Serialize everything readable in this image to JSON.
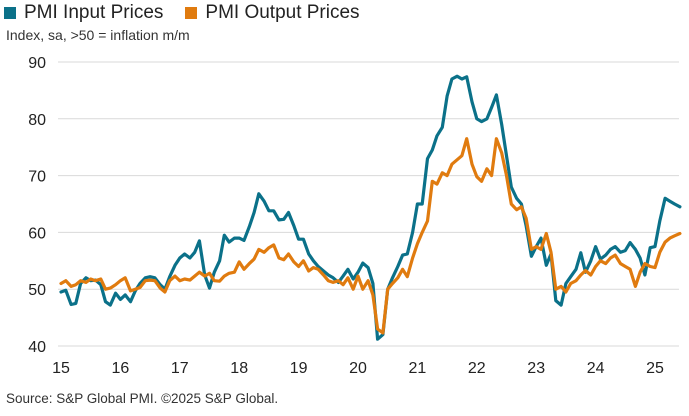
{
  "chart_data": {
    "type": "line",
    "subtitle": "Index, sa, >50 = inflation m/m",
    "source": "Source: S&P Global PMI. ©2025 S&P Global.",
    "ylim": [
      40,
      90
    ],
    "yticks": [
      "40",
      "50",
      "60",
      "70",
      "80",
      "90"
    ],
    "xlim": [
      2015.0,
      2025.42
    ],
    "xticks": [
      "15",
      "16",
      "17",
      "18",
      "19",
      "20",
      "21",
      "22",
      "23",
      "24",
      "25"
    ],
    "grid": true,
    "series": [
      {
        "name": "PMI Input Prices",
        "color": "#0b7189",
        "points": [
          [
            2015.0,
            49.5
          ],
          [
            2015.08,
            49.8
          ],
          [
            2015.17,
            47.3
          ],
          [
            2015.25,
            47.5
          ],
          [
            2015.33,
            51.0
          ],
          [
            2015.42,
            52.0
          ],
          [
            2015.5,
            51.5
          ],
          [
            2015.58,
            51.6
          ],
          [
            2015.67,
            50.8
          ],
          [
            2015.75,
            47.8
          ],
          [
            2015.83,
            47.2
          ],
          [
            2015.92,
            49.3
          ],
          [
            2016.0,
            48.2
          ],
          [
            2016.08,
            49.0
          ],
          [
            2016.17,
            47.8
          ],
          [
            2016.25,
            49.7
          ],
          [
            2016.33,
            51.0
          ],
          [
            2016.42,
            52.0
          ],
          [
            2016.5,
            52.2
          ],
          [
            2016.58,
            52.0
          ],
          [
            2016.67,
            50.8
          ],
          [
            2016.75,
            50.0
          ],
          [
            2016.83,
            52.2
          ],
          [
            2016.92,
            54.2
          ],
          [
            2017.0,
            55.5
          ],
          [
            2017.08,
            56.2
          ],
          [
            2017.17,
            55.5
          ],
          [
            2017.25,
            56.5
          ],
          [
            2017.33,
            58.5
          ],
          [
            2017.42,
            52.5
          ],
          [
            2017.5,
            50.2
          ],
          [
            2017.58,
            53.0
          ],
          [
            2017.67,
            55.0
          ],
          [
            2017.75,
            59.5
          ],
          [
            2017.83,
            58.3
          ],
          [
            2017.92,
            59.0
          ],
          [
            2018.0,
            59.0
          ],
          [
            2018.08,
            58.6
          ],
          [
            2018.17,
            61.0
          ],
          [
            2018.25,
            63.5
          ],
          [
            2018.33,
            66.8
          ],
          [
            2018.42,
            65.5
          ],
          [
            2018.5,
            63.8
          ],
          [
            2018.58,
            63.8
          ],
          [
            2018.67,
            62.2
          ],
          [
            2018.75,
            62.3
          ],
          [
            2018.83,
            63.5
          ],
          [
            2018.92,
            61.2
          ],
          [
            2019.0,
            58.8
          ],
          [
            2019.08,
            58.8
          ],
          [
            2019.17,
            56.2
          ],
          [
            2019.25,
            55.0
          ],
          [
            2019.33,
            54.0
          ],
          [
            2019.42,
            53.2
          ],
          [
            2019.5,
            52.5
          ],
          [
            2019.58,
            52.0
          ],
          [
            2019.67,
            51.2
          ],
          [
            2019.75,
            52.3
          ],
          [
            2019.83,
            53.5
          ],
          [
            2019.92,
            51.8
          ],
          [
            2020.0,
            53.0
          ],
          [
            2020.08,
            54.6
          ],
          [
            2020.17,
            53.8
          ],
          [
            2020.25,
            51.0
          ],
          [
            2020.33,
            41.2
          ],
          [
            2020.42,
            42.0
          ],
          [
            2020.5,
            50.0
          ],
          [
            2020.58,
            52.0
          ],
          [
            2020.67,
            54.0
          ],
          [
            2020.75,
            56.0
          ],
          [
            2020.83,
            56.2
          ],
          [
            2020.92,
            60.0
          ],
          [
            2021.0,
            65.0
          ],
          [
            2021.08,
            65.0
          ],
          [
            2021.17,
            73.0
          ],
          [
            2021.25,
            74.5
          ],
          [
            2021.33,
            77.0
          ],
          [
            2021.42,
            78.5
          ],
          [
            2021.5,
            84.0
          ],
          [
            2021.58,
            87.0
          ],
          [
            2021.67,
            87.5
          ],
          [
            2021.75,
            87.0
          ],
          [
            2021.83,
            87.4
          ],
          [
            2021.92,
            83.0
          ],
          [
            2022.0,
            80.0
          ],
          [
            2022.08,
            79.5
          ],
          [
            2022.17,
            80.0
          ],
          [
            2022.25,
            82.0
          ],
          [
            2022.33,
            84.2
          ],
          [
            2022.42,
            79.0
          ],
          [
            2022.5,
            73.5
          ],
          [
            2022.58,
            68.0
          ],
          [
            2022.67,
            66.0
          ],
          [
            2022.75,
            65.0
          ],
          [
            2022.83,
            61.2
          ],
          [
            2022.92,
            55.8
          ],
          [
            2023.0,
            57.5
          ],
          [
            2023.08,
            59.0
          ],
          [
            2023.17,
            54.2
          ],
          [
            2023.25,
            56.2
          ],
          [
            2023.33,
            48.0
          ],
          [
            2023.42,
            47.2
          ],
          [
            2023.5,
            51.0
          ],
          [
            2023.58,
            52.2
          ],
          [
            2023.67,
            53.5
          ],
          [
            2023.75,
            56.4
          ],
          [
            2023.83,
            53.0
          ],
          [
            2023.92,
            55.0
          ],
          [
            2024.0,
            57.5
          ],
          [
            2024.08,
            55.3
          ],
          [
            2024.17,
            56.0
          ],
          [
            2024.25,
            57.0
          ],
          [
            2024.33,
            57.5
          ],
          [
            2024.42,
            56.5
          ],
          [
            2024.5,
            56.8
          ],
          [
            2024.58,
            58.2
          ],
          [
            2024.67,
            57.0
          ],
          [
            2024.75,
            55.5
          ],
          [
            2024.83,
            52.5
          ],
          [
            2024.92,
            57.3
          ],
          [
            2025.0,
            57.5
          ],
          [
            2025.08,
            62.0
          ],
          [
            2025.17,
            66.0
          ],
          [
            2025.25,
            65.5
          ],
          [
            2025.33,
            65.0
          ],
          [
            2025.42,
            64.5
          ]
        ]
      },
      {
        "name": "PMI Output Prices",
        "color": "#e07b0f",
        "points": [
          [
            2015.0,
            51.0
          ],
          [
            2015.08,
            51.5
          ],
          [
            2015.17,
            50.5
          ],
          [
            2015.25,
            50.8
          ],
          [
            2015.33,
            51.5
          ],
          [
            2015.42,
            51.2
          ],
          [
            2015.5,
            51.8
          ],
          [
            2015.58,
            51.5
          ],
          [
            2015.67,
            51.8
          ],
          [
            2015.75,
            50.0
          ],
          [
            2015.83,
            50.2
          ],
          [
            2015.92,
            50.8
          ],
          [
            2016.0,
            51.5
          ],
          [
            2016.08,
            52.0
          ],
          [
            2016.17,
            49.7
          ],
          [
            2016.25,
            50.0
          ],
          [
            2016.33,
            50.3
          ],
          [
            2016.42,
            51.5
          ],
          [
            2016.5,
            51.6
          ],
          [
            2016.58,
            51.5
          ],
          [
            2016.67,
            50.2
          ],
          [
            2016.75,
            49.5
          ],
          [
            2016.83,
            51.5
          ],
          [
            2016.92,
            52.3
          ],
          [
            2017.0,
            51.5
          ],
          [
            2017.08,
            51.8
          ],
          [
            2017.17,
            51.6
          ],
          [
            2017.25,
            52.3
          ],
          [
            2017.33,
            53.0
          ],
          [
            2017.42,
            52.3
          ],
          [
            2017.5,
            52.8
          ],
          [
            2017.58,
            51.5
          ],
          [
            2017.67,
            51.4
          ],
          [
            2017.75,
            52.3
          ],
          [
            2017.83,
            52.8
          ],
          [
            2017.92,
            53.0
          ],
          [
            2018.0,
            54.8
          ],
          [
            2018.08,
            53.5
          ],
          [
            2018.17,
            54.5
          ],
          [
            2018.25,
            55.3
          ],
          [
            2018.33,
            57.0
          ],
          [
            2018.42,
            56.5
          ],
          [
            2018.5,
            57.3
          ],
          [
            2018.58,
            57.8
          ],
          [
            2018.67,
            55.5
          ],
          [
            2018.75,
            55.2
          ],
          [
            2018.83,
            56.2
          ],
          [
            2018.92,
            54.8
          ],
          [
            2019.0,
            54.0
          ],
          [
            2019.08,
            55.0
          ],
          [
            2019.17,
            53.2
          ],
          [
            2019.25,
            53.8
          ],
          [
            2019.33,
            53.5
          ],
          [
            2019.42,
            52.5
          ],
          [
            2019.5,
            51.5
          ],
          [
            2019.58,
            51.2
          ],
          [
            2019.67,
            51.5
          ],
          [
            2019.75,
            50.8
          ],
          [
            2019.83,
            52.0
          ],
          [
            2019.92,
            50.0
          ],
          [
            2020.0,
            52.3
          ],
          [
            2020.08,
            50.0
          ],
          [
            2020.17,
            51.5
          ],
          [
            2020.25,
            49.0
          ],
          [
            2020.33,
            43.0
          ],
          [
            2020.42,
            42.3
          ],
          [
            2020.5,
            50.0
          ],
          [
            2020.58,
            51.0
          ],
          [
            2020.67,
            52.0
          ],
          [
            2020.75,
            53.5
          ],
          [
            2020.83,
            52.2
          ],
          [
            2020.92,
            55.5
          ],
          [
            2021.0,
            58.0
          ],
          [
            2021.08,
            60.0
          ],
          [
            2021.17,
            62.0
          ],
          [
            2021.25,
            69.0
          ],
          [
            2021.33,
            68.5
          ],
          [
            2021.42,
            70.5
          ],
          [
            2021.5,
            70.0
          ],
          [
            2021.58,
            72.0
          ],
          [
            2021.67,
            72.8
          ],
          [
            2021.75,
            73.5
          ],
          [
            2021.83,
            76.5
          ],
          [
            2021.92,
            72.0
          ],
          [
            2022.0,
            69.8
          ],
          [
            2022.08,
            69.0
          ],
          [
            2022.17,
            71.2
          ],
          [
            2022.25,
            70.0
          ],
          [
            2022.33,
            76.5
          ],
          [
            2022.42,
            74.0
          ],
          [
            2022.5,
            70.0
          ],
          [
            2022.58,
            65.0
          ],
          [
            2022.67,
            64.0
          ],
          [
            2022.75,
            64.5
          ],
          [
            2022.83,
            62.5
          ],
          [
            2022.92,
            57.0
          ],
          [
            2023.0,
            57.5
          ],
          [
            2023.08,
            57.0
          ],
          [
            2023.17,
            59.8
          ],
          [
            2023.25,
            56.5
          ],
          [
            2023.33,
            50.0
          ],
          [
            2023.42,
            50.5
          ],
          [
            2023.5,
            49.5
          ],
          [
            2023.58,
            51.0
          ],
          [
            2023.67,
            51.5
          ],
          [
            2023.75,
            52.5
          ],
          [
            2023.83,
            53.3
          ],
          [
            2023.92,
            52.5
          ],
          [
            2024.0,
            54.0
          ],
          [
            2024.08,
            55.0
          ],
          [
            2024.17,
            54.5
          ],
          [
            2024.25,
            55.5
          ],
          [
            2024.33,
            56.0
          ],
          [
            2024.42,
            54.5
          ],
          [
            2024.5,
            54.0
          ],
          [
            2024.58,
            53.5
          ],
          [
            2024.67,
            50.5
          ],
          [
            2024.75,
            53.0
          ],
          [
            2024.83,
            54.5
          ],
          [
            2024.92,
            54.0
          ],
          [
            2025.0,
            53.8
          ],
          [
            2025.08,
            56.5
          ],
          [
            2025.17,
            58.3
          ],
          [
            2025.25,
            59.0
          ],
          [
            2025.33,
            59.4
          ],
          [
            2025.42,
            59.8
          ]
        ]
      }
    ]
  }
}
